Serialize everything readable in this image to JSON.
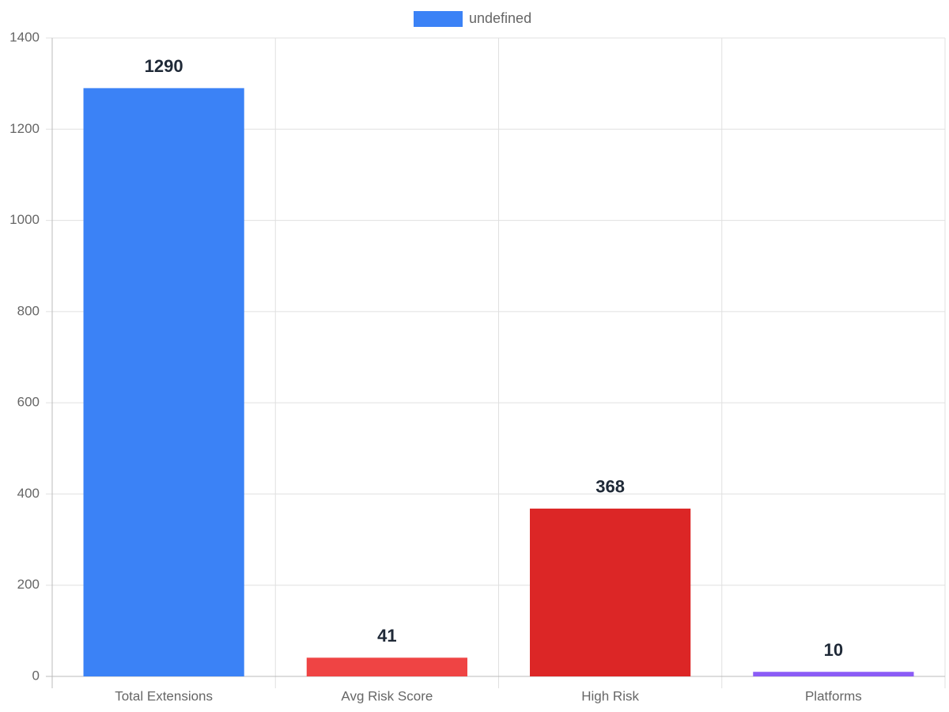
{
  "chart_data": {
    "type": "bar",
    "categories": [
      "Total Extensions",
      "Avg Risk Score",
      "High Risk",
      "Platforms"
    ],
    "series": [
      {
        "name": "undefined",
        "color": "#3b82f6",
        "values": [
          1290,
          41,
          368,
          10
        ],
        "colors": [
          "#3b82f6",
          "#ef4444",
          "#dc2626",
          "#8b5cf6"
        ]
      }
    ],
    "ylim": [
      0,
      1400
    ],
    "yticks": [
      0,
      200,
      400,
      600,
      800,
      1000,
      1200,
      1400
    ],
    "grid": true,
    "legend": "top",
    "value_labels_shown": true
  }
}
